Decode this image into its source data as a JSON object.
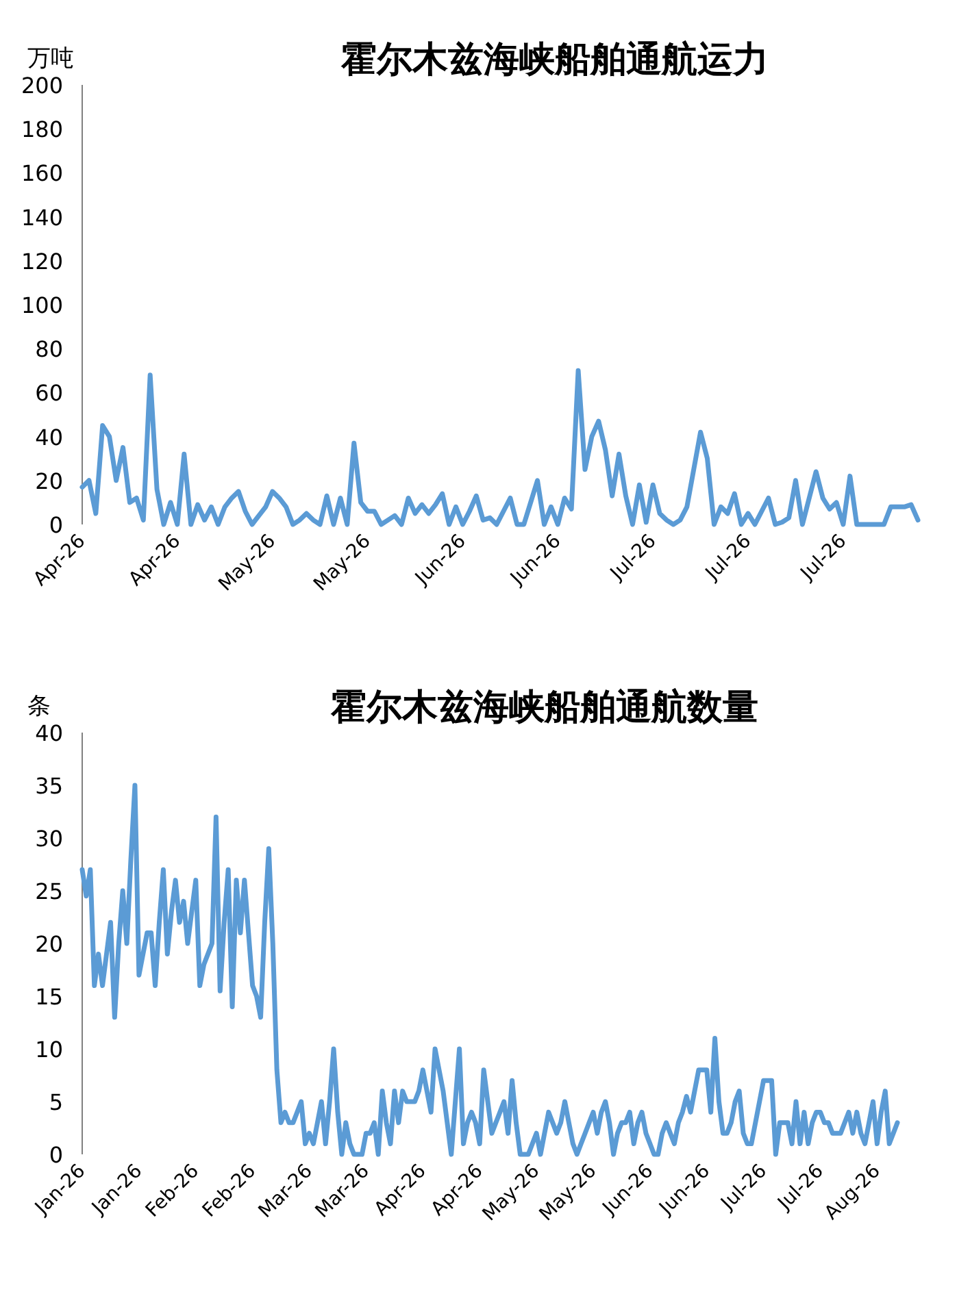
{
  "chart_data": [
    {
      "type": "line",
      "title": "霍尔木兹海峡船舶通航运力",
      "ylabel": "万吨",
      "color": "#5b9bd5",
      "categories": [
        "Apr-26",
        null,
        null,
        null,
        null,
        null,
        null,
        null,
        null,
        null,
        null,
        null,
        null,
        null,
        "Apr-26",
        null,
        null,
        null,
        null,
        null,
        null,
        null,
        null,
        null,
        null,
        null,
        null,
        null,
        "May-26",
        null,
        null,
        null,
        null,
        null,
        null,
        null,
        null,
        null,
        null,
        null,
        null,
        null,
        "May-26",
        null,
        null,
        null,
        null,
        null,
        null,
        null,
        null,
        null,
        null,
        null,
        null,
        null,
        "Jun-26",
        null,
        null,
        null,
        null,
        null,
        null,
        null,
        null,
        null,
        null,
        null,
        null,
        null,
        "Jun-26",
        null,
        null,
        null,
        null,
        null,
        null,
        null,
        null,
        null,
        null,
        null,
        null,
        null,
        "Jul-26",
        null,
        null,
        null,
        null,
        null,
        null,
        null,
        null,
        null,
        null,
        null,
        null,
        null,
        "Jul-26",
        null,
        null,
        null,
        null,
        null,
        null,
        null,
        null,
        null,
        null,
        null,
        null,
        null,
        "Jul-26",
        null,
        null,
        null,
        null,
        null,
        null,
        null,
        null,
        null,
        null,
        null
      ],
      "values": [
        17,
        20,
        5,
        45,
        40,
        20,
        35,
        10,
        12,
        2,
        68,
        16,
        0,
        10,
        0,
        32,
        0,
        9,
        2,
        8,
        0,
        8,
        12,
        15,
        6,
        0,
        4,
        8,
        15,
        12,
        8,
        0,
        2,
        5,
        2,
        0,
        13,
        0,
        12,
        0,
        37,
        10,
        6,
        6,
        0,
        2,
        4,
        0,
        12,
        5,
        9,
        5,
        9,
        14,
        0,
        8,
        0,
        6,
        13,
        2,
        3,
        0,
        6,
        12,
        0,
        0,
        10,
        20,
        0,
        8,
        0,
        12,
        7,
        70,
        25,
        40,
        47,
        34,
        13,
        32,
        13,
        0,
        18,
        1,
        18,
        5,
        2,
        0,
        2,
        8,
        25,
        42,
        30,
        0,
        8,
        5,
        14,
        0,
        5,
        0,
        6,
        12,
        0,
        1,
        3,
        20,
        0,
        12,
        24,
        12,
        7,
        10,
        0,
        22,
        0,
        0,
        0,
        0,
        0,
        8,
        8,
        8,
        9,
        2
      ],
      "ylim": [
        0,
        200
      ],
      "yticks": [
        0,
        20,
        40,
        60,
        80,
        100,
        120,
        140,
        160,
        180,
        200
      ]
    },
    {
      "type": "line",
      "title": "霍尔木兹海峡船舶通航数量",
      "ylabel": "条",
      "color": "#5b9bd5",
      "categories": [
        "Jan-26",
        null,
        null,
        null,
        null,
        null,
        null,
        null,
        null,
        null,
        null,
        null,
        null,
        null,
        "Jan-26",
        null,
        null,
        null,
        null,
        null,
        null,
        null,
        null,
        null,
        null,
        null,
        null,
        null,
        "Feb-26",
        null,
        null,
        null,
        null,
        null,
        null,
        null,
        null,
        null,
        null,
        null,
        null,
        null,
        "Feb-26",
        null,
        null,
        null,
        null,
        null,
        null,
        null,
        null,
        null,
        null,
        null,
        null,
        null,
        "Mar-26",
        null,
        null,
        null,
        null,
        null,
        null,
        null,
        null,
        null,
        null,
        null,
        null,
        null,
        "Mar-26",
        null,
        null,
        null,
        null,
        null,
        null,
        null,
        null,
        null,
        null,
        null,
        null,
        null,
        "Apr-26",
        null,
        null,
        null,
        null,
        null,
        null,
        null,
        null,
        null,
        null,
        null,
        null,
        null,
        "Apr-26",
        null,
        null,
        null,
        null,
        null,
        null,
        null,
        null,
        null,
        null,
        null,
        null,
        null,
        "May-26",
        null,
        null,
        null,
        null,
        null,
        null,
        null,
        null,
        null,
        null,
        null,
        null,
        null,
        "May-26",
        null,
        null,
        null,
        null,
        null,
        null,
        null,
        null,
        null,
        null,
        null,
        null,
        null,
        "Jun-26",
        null,
        null,
        null,
        null,
        null,
        null,
        null,
        null,
        null,
        null,
        null,
        null,
        null,
        "Jun-26",
        null,
        null,
        null,
        null,
        null,
        null,
        null,
        null,
        null,
        null,
        null,
        null,
        null,
        "Jul-26",
        null,
        null,
        null,
        null,
        null,
        null,
        null,
        null,
        null,
        null,
        null,
        null,
        null,
        "Jul-26",
        null,
        null,
        null,
        null,
        null,
        null,
        null,
        null,
        null,
        null,
        null,
        null,
        null,
        "Aug-26",
        null,
        null,
        null,
        null,
        null
      ],
      "values": [
        27,
        24.5,
        27,
        16,
        19,
        16,
        19,
        22,
        13,
        20,
        25,
        20,
        28,
        35,
        17,
        19,
        21,
        21,
        16,
        22,
        27,
        19,
        23,
        26,
        22,
        24,
        20,
        23,
        26,
        16,
        18,
        19,
        20,
        32,
        15.5,
        22,
        27,
        14,
        26,
        21,
        26,
        21,
        16,
        15,
        13,
        22,
        29,
        20,
        8,
        3,
        4,
        3,
        3,
        4,
        5,
        1,
        2,
        1,
        3,
        5,
        1,
        5,
        10,
        4,
        0,
        3,
        1,
        0,
        0,
        0,
        2,
        2,
        3,
        0,
        6,
        3,
        1,
        6,
        3,
        6,
        5,
        5,
        5,
        6,
        8,
        6,
        4,
        10,
        8,
        6,
        3,
        0,
        5,
        10,
        1,
        3,
        4,
        3,
        1,
        8,
        5,
        2,
        3,
        4,
        5,
        2,
        7,
        3,
        0,
        0,
        0,
        1,
        2,
        0,
        2,
        4,
        3,
        2,
        3,
        5,
        3,
        1,
        0,
        1,
        2,
        3,
        4,
        2,
        4,
        5,
        3,
        0,
        2,
        3,
        3,
        4,
        1,
        3,
        4,
        2,
        1,
        0,
        0,
        2,
        3,
        2,
        1,
        3,
        4,
        5.5,
        4,
        6,
        8,
        8,
        8,
        4,
        11,
        5,
        2,
        2,
        3,
        5,
        6,
        2,
        1,
        1,
        3,
        5,
        7,
        7,
        7,
        0,
        3,
        3,
        3,
        1,
        5,
        1,
        4,
        1,
        3,
        4,
        4,
        3,
        3,
        2,
        2,
        2,
        3,
        4,
        2,
        4,
        2,
        1,
        3,
        5,
        1,
        4,
        6,
        1,
        2,
        3
      ],
      "ylim": [
        0,
        40
      ],
      "yticks": [
        0,
        5,
        10,
        15,
        20,
        25,
        30,
        35,
        40
      ]
    }
  ]
}
